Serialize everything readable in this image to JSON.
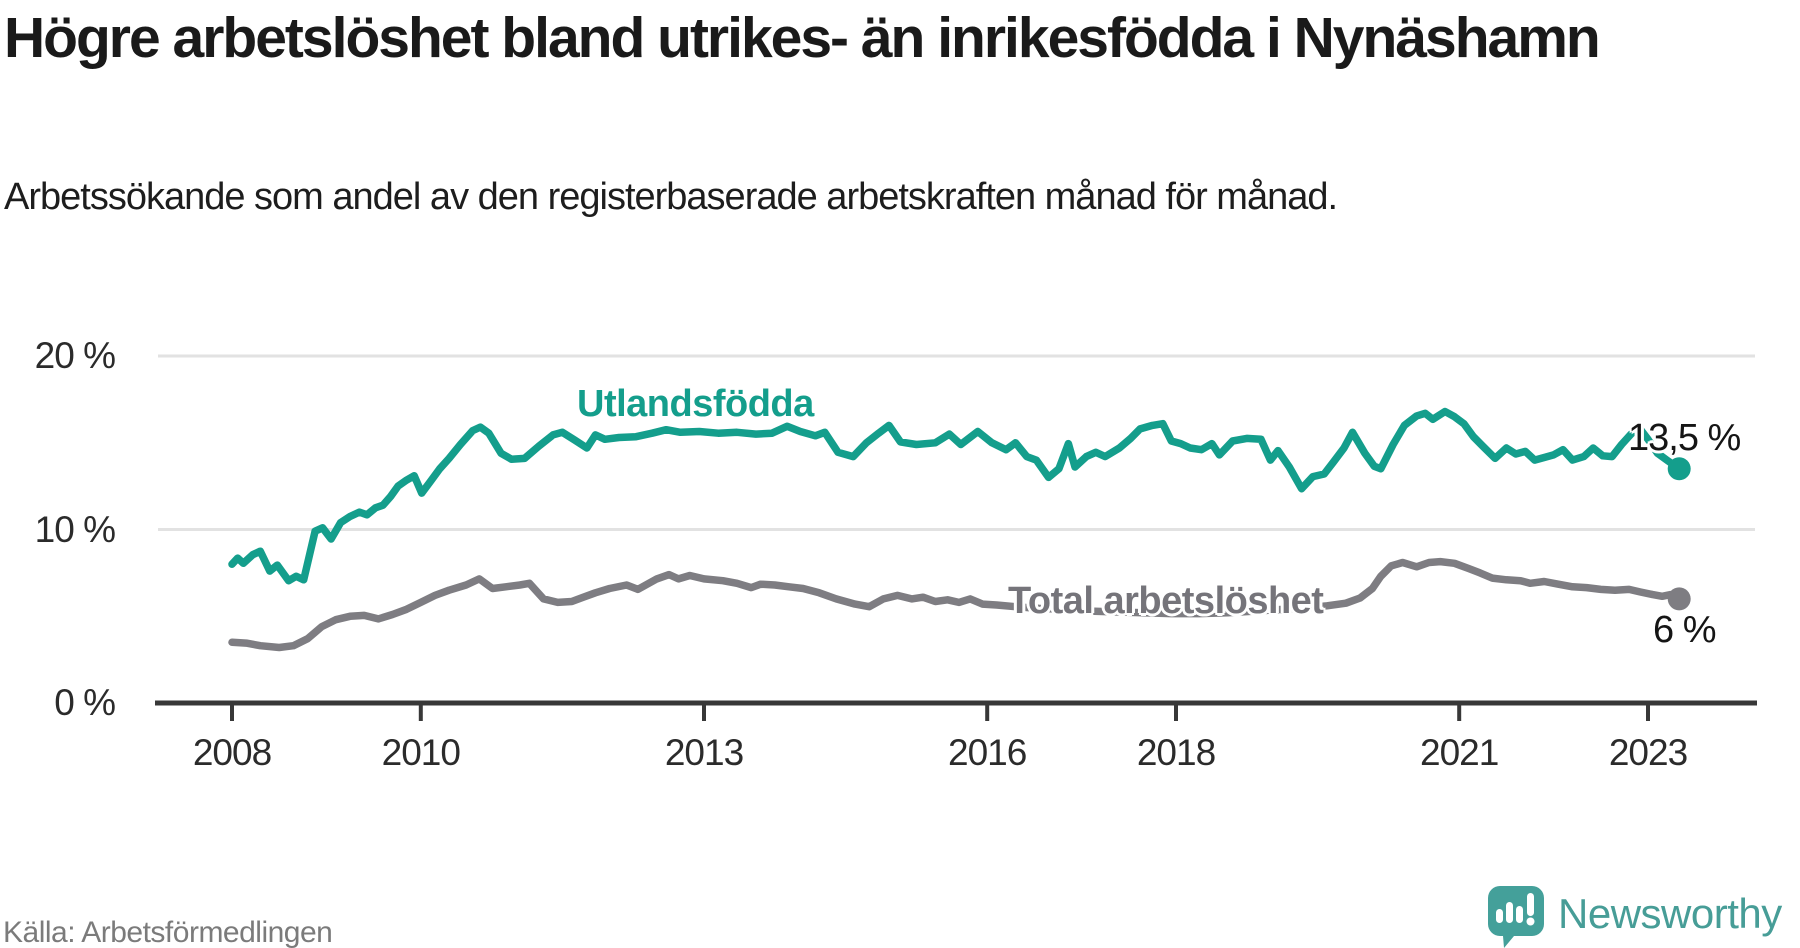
{
  "header": {
    "title": "Högre arbetslöshet bland utrikes- än inrikesfödda i Nynäshamn",
    "subtitle": "Arbetssökande som andel av den registerbaserade arbetskraften månad för månad."
  },
  "footer": {
    "source": "Källa: Arbetsförmedlingen",
    "brand": "Newsworthy",
    "brand_color": "#479d97",
    "logo_icon": "newsworthy-speech-bubble-chart-icon"
  },
  "chart_data": {
    "type": "line",
    "title": "Högre arbetslöshet bland utrikes- än inrikesfödda i Nynäshamn",
    "subtitle": "Arbetssökande som andel av den registerbaserade arbetskraften månad för månad.",
    "xlabel": "",
    "ylabel": "",
    "grid": "horizontal-only",
    "x_axis": {
      "ticks": [
        2008,
        2010,
        2013,
        2016,
        2018,
        2021,
        2023
      ],
      "labels": [
        "2008",
        "2010",
        "2013",
        "2016",
        "2018",
        "2021",
        "2023"
      ],
      "range_years": [
        2007.2,
        2024.1
      ]
    },
    "y_axis": {
      "ticks": [
        0,
        10,
        20
      ],
      "labels": [
        "0 %",
        "10 %",
        "20 %"
      ],
      "range": [
        0,
        21.5
      ],
      "unit": "%"
    },
    "series": [
      {
        "name": "Utlandsfödda",
        "color": "#149e8c",
        "label_color": "#149e8c",
        "end_label": "13,5 %",
        "end_value": 13.5,
        "points": [
          [
            2008.0,
            8.0
          ],
          [
            2008.06,
            8.35
          ],
          [
            2008.12,
            8.05
          ],
          [
            2008.22,
            8.55
          ],
          [
            2008.3,
            8.75
          ],
          [
            2008.4,
            7.6
          ],
          [
            2008.48,
            7.95
          ],
          [
            2008.6,
            7.05
          ],
          [
            2008.68,
            7.3
          ],
          [
            2008.76,
            7.1
          ],
          [
            2008.88,
            9.9
          ],
          [
            2008.96,
            10.1
          ],
          [
            2009.05,
            9.45
          ],
          [
            2009.15,
            10.4
          ],
          [
            2009.25,
            10.75
          ],
          [
            2009.35,
            11.0
          ],
          [
            2009.43,
            10.85
          ],
          [
            2009.52,
            11.25
          ],
          [
            2009.6,
            11.4
          ],
          [
            2009.68,
            11.9
          ],
          [
            2009.76,
            12.5
          ],
          [
            2009.85,
            12.85
          ],
          [
            2009.93,
            13.1
          ],
          [
            2010.01,
            12.1
          ],
          [
            2010.1,
            12.75
          ],
          [
            2010.2,
            13.5
          ],
          [
            2010.3,
            14.1
          ],
          [
            2010.42,
            14.9
          ],
          [
            2010.55,
            15.7
          ],
          [
            2010.63,
            15.9
          ],
          [
            2010.72,
            15.55
          ],
          [
            2010.85,
            14.4
          ],
          [
            2010.96,
            14.05
          ],
          [
            2011.1,
            14.1
          ],
          [
            2011.25,
            14.8
          ],
          [
            2011.4,
            15.45
          ],
          [
            2011.5,
            15.6
          ],
          [
            2011.63,
            15.15
          ],
          [
            2011.76,
            14.7
          ],
          [
            2011.85,
            15.45
          ],
          [
            2011.95,
            15.2
          ],
          [
            2012.1,
            15.3
          ],
          [
            2012.28,
            15.35
          ],
          [
            2012.45,
            15.55
          ],
          [
            2012.6,
            15.75
          ],
          [
            2012.75,
            15.6
          ],
          [
            2012.95,
            15.65
          ],
          [
            2013.15,
            15.55
          ],
          [
            2013.35,
            15.6
          ],
          [
            2013.55,
            15.5
          ],
          [
            2013.72,
            15.55
          ],
          [
            2013.88,
            15.95
          ],
          [
            2014.02,
            15.65
          ],
          [
            2014.18,
            15.4
          ],
          [
            2014.28,
            15.6
          ],
          [
            2014.42,
            14.45
          ],
          [
            2014.58,
            14.2
          ],
          [
            2014.72,
            15.0
          ],
          [
            2014.85,
            15.55
          ],
          [
            2014.96,
            16.0
          ],
          [
            2015.08,
            15.05
          ],
          [
            2015.25,
            14.9
          ],
          [
            2015.45,
            15.0
          ],
          [
            2015.6,
            15.5
          ],
          [
            2015.72,
            14.9
          ],
          [
            2015.9,
            15.65
          ],
          [
            2016.05,
            15.0
          ],
          [
            2016.2,
            14.6
          ],
          [
            2016.3,
            15.0
          ],
          [
            2016.42,
            14.2
          ],
          [
            2016.52,
            14.0
          ],
          [
            2016.65,
            13.0
          ],
          [
            2016.76,
            13.5
          ],
          [
            2016.86,
            14.95
          ],
          [
            2016.93,
            13.6
          ],
          [
            2017.05,
            14.2
          ],
          [
            2017.15,
            14.45
          ],
          [
            2017.25,
            14.2
          ],
          [
            2017.4,
            14.7
          ],
          [
            2017.52,
            15.25
          ],
          [
            2017.62,
            15.8
          ],
          [
            2017.75,
            16.0
          ],
          [
            2017.86,
            16.1
          ],
          [
            2017.95,
            15.1
          ],
          [
            2018.05,
            14.95
          ],
          [
            2018.15,
            14.7
          ],
          [
            2018.27,
            14.6
          ],
          [
            2018.38,
            14.95
          ],
          [
            2018.46,
            14.3
          ],
          [
            2018.6,
            15.1
          ],
          [
            2018.75,
            15.25
          ],
          [
            2018.9,
            15.2
          ],
          [
            2019.0,
            14.0
          ],
          [
            2019.08,
            14.55
          ],
          [
            2019.2,
            13.6
          ],
          [
            2019.33,
            12.35
          ],
          [
            2019.45,
            13.05
          ],
          [
            2019.57,
            13.2
          ],
          [
            2019.67,
            13.9
          ],
          [
            2019.78,
            14.7
          ],
          [
            2019.87,
            15.6
          ],
          [
            2020.0,
            14.4
          ],
          [
            2020.1,
            13.65
          ],
          [
            2020.17,
            13.5
          ],
          [
            2020.3,
            14.9
          ],
          [
            2020.42,
            16.0
          ],
          [
            2020.55,
            16.55
          ],
          [
            2020.64,
            16.7
          ],
          [
            2020.72,
            16.35
          ],
          [
            2020.85,
            16.8
          ],
          [
            2020.95,
            16.5
          ],
          [
            2021.05,
            16.1
          ],
          [
            2021.15,
            15.35
          ],
          [
            2021.25,
            14.8
          ],
          [
            2021.38,
            14.1
          ],
          [
            2021.5,
            14.7
          ],
          [
            2021.6,
            14.35
          ],
          [
            2021.7,
            14.5
          ],
          [
            2021.8,
            14.0
          ],
          [
            2021.9,
            14.15
          ],
          [
            2022.0,
            14.3
          ],
          [
            2022.1,
            14.6
          ],
          [
            2022.2,
            14.0
          ],
          [
            2022.32,
            14.2
          ],
          [
            2022.42,
            14.7
          ],
          [
            2022.52,
            14.25
          ],
          [
            2022.62,
            14.2
          ],
          [
            2022.72,
            14.9
          ],
          [
            2022.82,
            15.5
          ],
          [
            2022.9,
            15.9
          ],
          [
            2023.0,
            15.2
          ],
          [
            2023.1,
            14.4
          ],
          [
            2023.2,
            14.0
          ],
          [
            2023.33,
            13.5
          ]
        ]
      },
      {
        "name": "Total arbetslöshet",
        "color": "#7e7d82",
        "label_color": "#75747a",
        "end_label": "6 %",
        "end_value": 6.0,
        "points": [
          [
            2008.0,
            3.5
          ],
          [
            2008.15,
            3.45
          ],
          [
            2008.3,
            3.3
          ],
          [
            2008.5,
            3.2
          ],
          [
            2008.65,
            3.3
          ],
          [
            2008.8,
            3.7
          ],
          [
            2008.95,
            4.4
          ],
          [
            2009.1,
            4.8
          ],
          [
            2009.25,
            5.0
          ],
          [
            2009.4,
            5.05
          ],
          [
            2009.55,
            4.85
          ],
          [
            2009.7,
            5.1
          ],
          [
            2009.85,
            5.4
          ],
          [
            2010.0,
            5.8
          ],
          [
            2010.15,
            6.2
          ],
          [
            2010.3,
            6.5
          ],
          [
            2010.48,
            6.8
          ],
          [
            2010.62,
            7.15
          ],
          [
            2010.76,
            6.6
          ],
          [
            2010.9,
            6.7
          ],
          [
            2011.05,
            6.8
          ],
          [
            2011.15,
            6.9
          ],
          [
            2011.3,
            6.0
          ],
          [
            2011.45,
            5.8
          ],
          [
            2011.6,
            5.85
          ],
          [
            2011.72,
            6.1
          ],
          [
            2011.85,
            6.35
          ],
          [
            2012.0,
            6.6
          ],
          [
            2012.18,
            6.8
          ],
          [
            2012.3,
            6.55
          ],
          [
            2012.5,
            7.15
          ],
          [
            2012.63,
            7.4
          ],
          [
            2012.73,
            7.15
          ],
          [
            2012.85,
            7.35
          ],
          [
            2013.0,
            7.15
          ],
          [
            2013.2,
            7.05
          ],
          [
            2013.35,
            6.9
          ],
          [
            2013.5,
            6.65
          ],
          [
            2013.6,
            6.85
          ],
          [
            2013.75,
            6.8
          ],
          [
            2013.9,
            6.7
          ],
          [
            2014.05,
            6.6
          ],
          [
            2014.22,
            6.35
          ],
          [
            2014.4,
            6.0
          ],
          [
            2014.6,
            5.7
          ],
          [
            2014.75,
            5.55
          ],
          [
            2014.9,
            6.0
          ],
          [
            2015.05,
            6.2
          ],
          [
            2015.2,
            6.0
          ],
          [
            2015.32,
            6.1
          ],
          [
            2015.45,
            5.85
          ],
          [
            2015.58,
            5.95
          ],
          [
            2015.7,
            5.8
          ],
          [
            2015.82,
            6.0
          ],
          [
            2015.95,
            5.7
          ],
          [
            2016.1,
            5.65
          ],
          [
            2016.3,
            5.55
          ],
          [
            2016.55,
            5.45
          ],
          [
            2016.8,
            5.4
          ],
          [
            2017.05,
            5.3
          ],
          [
            2017.35,
            5.25
          ],
          [
            2017.65,
            5.2
          ],
          [
            2017.95,
            5.15
          ],
          [
            2018.25,
            5.15
          ],
          [
            2018.55,
            5.2
          ],
          [
            2018.85,
            5.3
          ],
          [
            2019.15,
            5.4
          ],
          [
            2019.4,
            5.5
          ],
          [
            2019.6,
            5.6
          ],
          [
            2019.8,
            5.75
          ],
          [
            2019.95,
            6.05
          ],
          [
            2020.08,
            6.6
          ],
          [
            2020.17,
            7.3
          ],
          [
            2020.28,
            7.9
          ],
          [
            2020.4,
            8.1
          ],
          [
            2020.55,
            7.85
          ],
          [
            2020.68,
            8.1
          ],
          [
            2020.8,
            8.15
          ],
          [
            2020.95,
            8.05
          ],
          [
            2021.1,
            7.75
          ],
          [
            2021.22,
            7.5
          ],
          [
            2021.35,
            7.2
          ],
          [
            2021.5,
            7.1
          ],
          [
            2021.65,
            7.05
          ],
          [
            2021.75,
            6.9
          ],
          [
            2021.9,
            7.0
          ],
          [
            2022.05,
            6.85
          ],
          [
            2022.2,
            6.7
          ],
          [
            2022.35,
            6.65
          ],
          [
            2022.5,
            6.55
          ],
          [
            2022.65,
            6.5
          ],
          [
            2022.8,
            6.55
          ],
          [
            2022.92,
            6.4
          ],
          [
            2023.05,
            6.25
          ],
          [
            2023.15,
            6.15
          ],
          [
            2023.24,
            6.25
          ],
          [
            2023.33,
            6.0
          ]
        ]
      }
    ],
    "legend_position": "inline-labels",
    "source": "Källa: Arbetsförmedlingen"
  }
}
